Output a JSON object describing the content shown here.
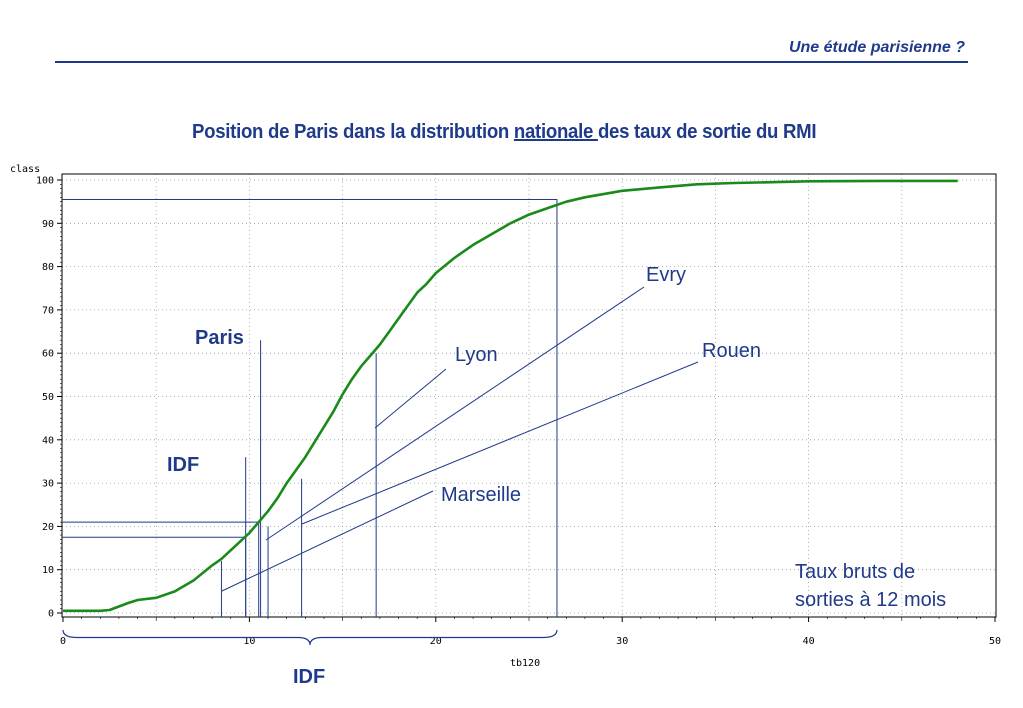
{
  "header": {
    "title": "Une étude parisienne ?"
  },
  "chart_title": {
    "before": "Position de Paris dans la distribution ",
    "underlined": "nationale ",
    "after": "des taux de sortie du RMI"
  },
  "chart_data": {
    "type": "line",
    "ylabel": "class",
    "xlabel": "tb120",
    "xlim": [
      0,
      50
    ],
    "ylim": [
      0,
      100
    ],
    "x_ticks": [
      0,
      10,
      20,
      30,
      40,
      50
    ],
    "y_ticks": [
      0,
      10,
      20,
      30,
      40,
      50,
      60,
      70,
      80,
      90,
      100
    ],
    "grid": true,
    "series": [
      {
        "color": "#1a8a1a",
        "x": [
          0,
          2,
          2.5,
          3,
          3.5,
          4,
          5,
          6,
          7,
          8,
          8.5,
          9,
          9.5,
          10,
          10.5,
          11,
          11.5,
          12,
          12.5,
          13,
          13.5,
          14,
          14.5,
          15,
          15.5,
          16,
          16.5,
          17,
          17.5,
          18,
          18.5,
          19,
          19.5,
          20,
          21,
          22,
          23,
          24,
          25,
          26,
          27,
          28,
          30,
          32,
          34,
          36,
          38,
          40,
          44,
          48
        ],
        "y": [
          0.5,
          0.5,
          0.7,
          1.5,
          2.3,
          3,
          3.5,
          5,
          7.5,
          11,
          12.5,
          14.5,
          16.5,
          18.5,
          21,
          23.5,
          26.5,
          30,
          33,
          36,
          39.5,
          43,
          46.5,
          50.5,
          54,
          57,
          59.5,
          62,
          65,
          68,
          71,
          74,
          76,
          78.5,
          82,
          85,
          87.5,
          90,
          92,
          93.5,
          95,
          96,
          97.5,
          98.3,
          99,
          99.3,
          99.5,
          99.7,
          99.8,
          99.8
        ]
      }
    ],
    "reference_lines": [
      {
        "x": 26.5,
        "y": 95.5
      },
      {
        "x": 10.5,
        "y": 21
      },
      {
        "x": 9.8,
        "y": 17.5
      }
    ],
    "marker_lines": [
      {
        "x": 8.5,
        "top": 12
      },
      {
        "x": 9.8,
        "top": 36
      },
      {
        "x": 10.6,
        "top": 63
      },
      {
        "x": 11,
        "top": 20
      },
      {
        "x": 12.8,
        "top": 31
      },
      {
        "x": 16.8,
        "top": 60
      }
    ],
    "annotations": {
      "evry": "Evry",
      "lyon": "Lyon",
      "rouen": "Rouen",
      "marseille": "Marseille",
      "paris": "Paris",
      "idf_upper": "IDF",
      "idf_brace": "IDF",
      "note_line1": "Taux bruts de",
      "note_line2": "sorties à 12 mois"
    }
  }
}
